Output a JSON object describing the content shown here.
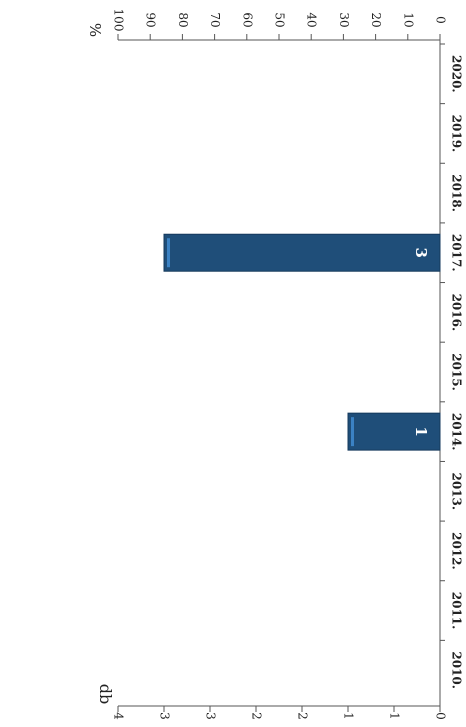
{
  "chart_data": {
    "type": "bar",
    "orientation": "rotated-90-clockwise",
    "categories": [
      "2010.",
      "2011.",
      "2012.",
      "2013.",
      "2014.",
      "2015.",
      "2016.",
      "2017.",
      "2018.",
      "2019.",
      "2020."
    ],
    "values": [
      0,
      0,
      0,
      0,
      1,
      0,
      0,
      3,
      0,
      0,
      0
    ],
    "data_labels": [
      "",
      "",
      "",
      "",
      "1",
      "",
      "",
      "3",
      "",
      "",
      ""
    ],
    "left_axis": {
      "label": "db",
      "ticks": [
        "0",
        "1",
        "1",
        "2",
        "2",
        "3",
        "3",
        "4"
      ],
      "range": [
        0,
        3.5
      ]
    },
    "right_axis": {
      "label": "%",
      "ticks": [
        "0",
        "10",
        "20",
        "30",
        "40",
        "50",
        "60",
        "70",
        "80",
        "90",
        "100"
      ],
      "range": [
        0,
        100
      ]
    },
    "colors": {
      "bar": "#1f4e79",
      "bar_edge": "#163a5c",
      "highlight": "#3b82c4",
      "axis": "#555555"
    }
  }
}
